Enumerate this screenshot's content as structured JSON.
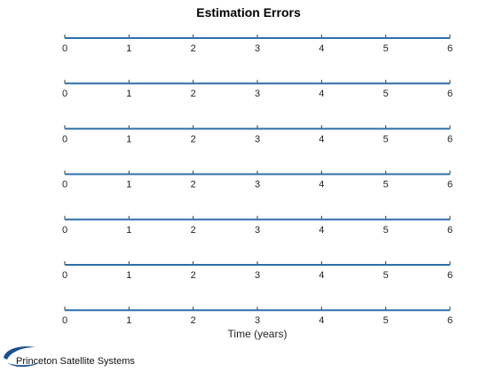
{
  "chart_data": {
    "type": "line",
    "title": "Estimation Errors",
    "xlabel": "Time (years)",
    "ylabel": "",
    "xlim": [
      0,
      6
    ],
    "x_ticks": [
      0,
      1,
      2,
      3,
      4,
      5,
      6
    ],
    "grid": false,
    "subplots": 7,
    "series": [
      {
        "x": [
          0,
          6
        ],
        "y": [
          0,
          0
        ]
      },
      {
        "x": [
          0,
          6
        ],
        "y": [
          0,
          0
        ]
      },
      {
        "x": [
          0,
          6
        ],
        "y": [
          0,
          0
        ]
      },
      {
        "x": [
          0,
          6
        ],
        "y": [
          0,
          0
        ]
      },
      {
        "x": [
          0,
          6
        ],
        "y": [
          0,
          0
        ]
      },
      {
        "x": [
          0,
          6
        ],
        "y": [
          0,
          0
        ]
      },
      {
        "x": [
          0,
          6
        ],
        "y": [
          0,
          0
        ]
      }
    ]
  },
  "colors": {
    "series": "#2f6fa8",
    "axis": "#333333",
    "logo": "#1f4f8f"
  },
  "logo": {
    "text": "Princeton Satellite Systems"
  }
}
